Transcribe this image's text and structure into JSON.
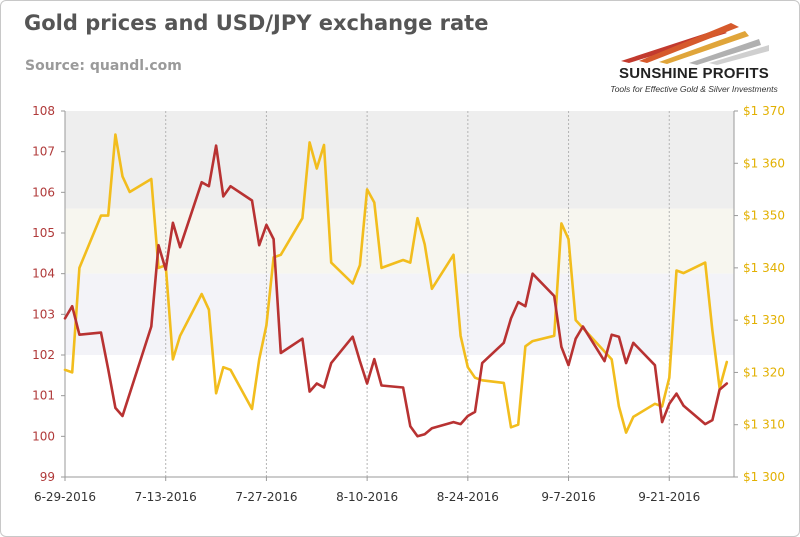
{
  "header": {
    "title": "Gold prices and USD/JPY exchange rate",
    "subtitle": "Source: quandl.com"
  },
  "logo": {
    "name": "SUNSHINE PROFITS",
    "tagline": "Tools for Effective Gold & Silver Investments"
  },
  "colors": {
    "usdjpy": "#b83232",
    "gold": "#f2bd1d",
    "left_axis_text": "#b03a3a",
    "right_axis_text": "#e2b000"
  },
  "chart_data": {
    "type": "line",
    "title": "Gold prices and USD/JPY exchange rate",
    "x_ticks": [
      "6-29-2016",
      "7-13-2016",
      "7-27-2016",
      "8-10-2016",
      "8-24-2016",
      "9-7-2016",
      "9-21-2016"
    ],
    "x_range": [
      "2016-06-29",
      "2016-09-30"
    ],
    "y_left": {
      "range": [
        99,
        108
      ],
      "ticks": [
        "99",
        "100",
        "101",
        "102",
        "103",
        "104",
        "105",
        "106",
        "107",
        "108"
      ]
    },
    "y_right": {
      "range": [
        1300,
        1370
      ],
      "ticks": [
        "$1 300",
        "$1 310",
        "$1 320",
        "$1 330",
        "$1 340",
        "$1 350",
        "$1 360",
        "$1 370"
      ]
    },
    "grid": "vertical dashed at x ticks",
    "background_bands": "shaded horizontal bands",
    "series": [
      {
        "axis": "left",
        "color": "#b83232",
        "points": [
          [
            "2016-06-29",
            102.9
          ],
          [
            "2016-06-30",
            103.2
          ],
          [
            "2016-07-01",
            102.5
          ],
          [
            "2016-07-04",
            102.55
          ],
          [
            "2016-07-05",
            101.65
          ],
          [
            "2016-07-06",
            100.7
          ],
          [
            "2016-07-07",
            100.5
          ],
          [
            "2016-07-11",
            102.7
          ],
          [
            "2016-07-12",
            104.7
          ],
          [
            "2016-07-13",
            104.1
          ],
          [
            "2016-07-14",
            105.25
          ],
          [
            "2016-07-15",
            104.65
          ],
          [
            "2016-07-18",
            106.25
          ],
          [
            "2016-07-19",
            106.15
          ],
          [
            "2016-07-20",
            107.15
          ],
          [
            "2016-07-21",
            105.9
          ],
          [
            "2016-07-22",
            106.15
          ],
          [
            "2016-07-25",
            105.8
          ],
          [
            "2016-07-26",
            104.7
          ],
          [
            "2016-07-27",
            105.2
          ],
          [
            "2016-07-28",
            104.85
          ],
          [
            "2016-07-29",
            102.05
          ],
          [
            "2016-08-01",
            102.4
          ],
          [
            "2016-08-02",
            101.1
          ],
          [
            "2016-08-03",
            101.3
          ],
          [
            "2016-08-04",
            101.2
          ],
          [
            "2016-08-05",
            101.8
          ],
          [
            "2016-08-08",
            102.45
          ],
          [
            "2016-08-09",
            101.85
          ],
          [
            "2016-08-10",
            101.3
          ],
          [
            "2016-08-11",
            101.9
          ],
          [
            "2016-08-12",
            101.25
          ],
          [
            "2016-08-15",
            101.2
          ],
          [
            "2016-08-16",
            100.25
          ],
          [
            "2016-08-17",
            100.0
          ],
          [
            "2016-08-18",
            100.05
          ],
          [
            "2016-08-19",
            100.2
          ],
          [
            "2016-08-22",
            100.35
          ],
          [
            "2016-08-23",
            100.3
          ],
          [
            "2016-08-24",
            100.5
          ],
          [
            "2016-08-25",
            100.6
          ],
          [
            "2016-08-26",
            101.8
          ],
          [
            "2016-08-29",
            102.3
          ],
          [
            "2016-08-30",
            102.9
          ],
          [
            "2016-08-31",
            103.3
          ],
          [
            "2016-09-01",
            103.2
          ],
          [
            "2016-09-02",
            104.0
          ],
          [
            "2016-09-05",
            103.45
          ],
          [
            "2016-09-06",
            102.2
          ],
          [
            "2016-09-07",
            101.75
          ],
          [
            "2016-09-08",
            102.4
          ],
          [
            "2016-09-09",
            102.7
          ],
          [
            "2016-09-12",
            101.85
          ],
          [
            "2016-09-13",
            102.5
          ],
          [
            "2016-09-14",
            102.45
          ],
          [
            "2016-09-15",
            101.8
          ],
          [
            "2016-09-16",
            102.3
          ],
          [
            "2016-09-19",
            101.75
          ],
          [
            "2016-09-20",
            100.35
          ],
          [
            "2016-09-21",
            100.8
          ],
          [
            "2016-09-22",
            101.05
          ],
          [
            "2016-09-23",
            100.75
          ],
          [
            "2016-09-26",
            100.3
          ],
          [
            "2016-09-27",
            100.4
          ],
          [
            "2016-09-28",
            101.15
          ],
          [
            "2016-09-29",
            101.3
          ]
        ]
      },
      {
        "axis": "right",
        "color": "#f2bd1d",
        "points": [
          [
            "2016-06-29",
            1320.5
          ],
          [
            "2016-06-30",
            1320.0
          ],
          [
            "2016-07-01",
            1340.0
          ],
          [
            "2016-07-04",
            1350.0
          ],
          [
            "2016-07-05",
            1350.0
          ],
          [
            "2016-07-06",
            1365.5
          ],
          [
            "2016-07-07",
            1357.5
          ],
          [
            "2016-07-08",
            1354.5
          ],
          [
            "2016-07-11",
            1357.0
          ],
          [
            "2016-07-12",
            1340.0
          ],
          [
            "2016-07-13",
            1340.5
          ],
          [
            "2016-07-14",
            1322.5
          ],
          [
            "2016-07-15",
            1327.0
          ],
          [
            "2016-07-18",
            1335.0
          ],
          [
            "2016-07-19",
            1332.0
          ],
          [
            "2016-07-20",
            1316.0
          ],
          [
            "2016-07-21",
            1321.0
          ],
          [
            "2016-07-22",
            1320.5
          ],
          [
            "2016-07-25",
            1313.0
          ],
          [
            "2016-07-26",
            1322.5
          ],
          [
            "2016-07-27",
            1329.0
          ],
          [
            "2016-07-28",
            1342.0
          ],
          [
            "2016-07-29",
            1342.5
          ],
          [
            "2016-08-01",
            1349.5
          ],
          [
            "2016-08-02",
            1364.0
          ],
          [
            "2016-08-03",
            1359.0
          ],
          [
            "2016-08-04",
            1363.5
          ],
          [
            "2016-08-05",
            1341.0
          ],
          [
            "2016-08-08",
            1337.0
          ],
          [
            "2016-08-09",
            1340.5
          ],
          [
            "2016-08-10",
            1355.0
          ],
          [
            "2016-08-11",
            1352.5
          ],
          [
            "2016-08-12",
            1340.0
          ],
          [
            "2016-08-15",
            1341.5
          ],
          [
            "2016-08-16",
            1341.0
          ],
          [
            "2016-08-17",
            1349.5
          ],
          [
            "2016-08-18",
            1344.5
          ],
          [
            "2016-08-19",
            1336.0
          ],
          [
            "2016-08-22",
            1342.5
          ],
          [
            "2016-08-23",
            1327.0
          ],
          [
            "2016-08-24",
            1321.0
          ],
          [
            "2016-08-25",
            1319.0
          ],
          [
            "2016-08-26",
            1318.5
          ],
          [
            "2016-08-29",
            1318.0
          ],
          [
            "2016-08-30",
            1309.5
          ],
          [
            "2016-08-31",
            1310.0
          ],
          [
            "2016-09-01",
            1325.0
          ],
          [
            "2016-09-02",
            1326.0
          ],
          [
            "2016-09-05",
            1327.0
          ],
          [
            "2016-09-06",
            1348.5
          ],
          [
            "2016-09-07",
            1345.5
          ],
          [
            "2016-09-08",
            1330.0
          ],
          [
            "2016-09-12",
            1324.0
          ],
          [
            "2016-09-13",
            1322.5
          ],
          [
            "2016-09-14",
            1313.5
          ],
          [
            "2016-09-15",
            1308.5
          ],
          [
            "2016-09-16",
            1311.5
          ],
          [
            "2016-09-19",
            1314.0
          ],
          [
            "2016-09-20",
            1313.5
          ],
          [
            "2016-09-21",
            1319.0
          ],
          [
            "2016-09-22",
            1339.5
          ],
          [
            "2016-09-23",
            1339.0
          ],
          [
            "2016-09-26",
            1341.0
          ],
          [
            "2016-09-27",
            1328.0
          ],
          [
            "2016-09-28",
            1317.0
          ],
          [
            "2016-09-29",
            1322.0
          ]
        ]
      }
    ]
  }
}
